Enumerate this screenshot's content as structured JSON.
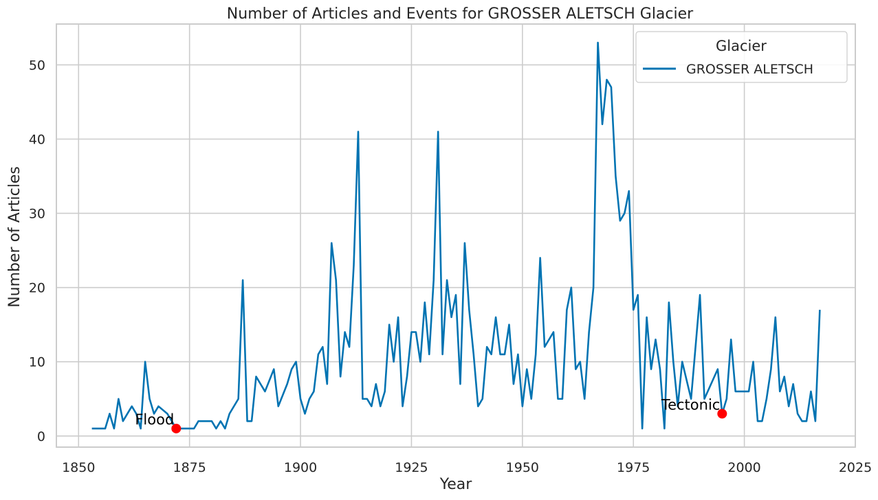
{
  "chart_data": {
    "type": "line",
    "title": "Number of Articles and Events for GROSSER ALETSCH Glacier",
    "xlabel": "Year",
    "ylabel": "Number of Articles",
    "xlim": [
      1845,
      2025
    ],
    "ylim": [
      -1.5,
      55.5
    ],
    "xticks": [
      1850,
      1875,
      1900,
      1925,
      1950,
      1975,
      2000,
      2025
    ],
    "yticks": [
      0,
      10,
      20,
      30,
      40,
      50
    ],
    "grid": true,
    "legend": {
      "title": "Glacier",
      "placement": "top-right"
    },
    "colors": {
      "line": "#0173b2",
      "event": "#ff0000",
      "grid": "#cccccc",
      "frame": "#cccccc"
    },
    "series": [
      {
        "name": "GROSSER ALETSCH",
        "x": [
          1853,
          1854,
          1855,
          1856,
          1857,
          1858,
          1859,
          1860,
          1862,
          1863,
          1864,
          1865,
          1866,
          1867,
          1868,
          1870,
          1871,
          1872,
          1873,
          1874,
          1875,
          1876,
          1877,
          1878,
          1879,
          1880,
          1881,
          1882,
          1883,
          1884,
          1886,
          1887,
          1888,
          1889,
          1890,
          1892,
          1894,
          1895,
          1897,
          1898,
          1899,
          1900,
          1901,
          1902,
          1903,
          1904,
          1905,
          1906,
          1907,
          1908,
          1909,
          1910,
          1911,
          1912,
          1913,
          1914,
          1915,
          1916,
          1917,
          1918,
          1919,
          1920,
          1921,
          1922,
          1923,
          1924,
          1925,
          1926,
          1927,
          1928,
          1929,
          1930,
          1931,
          1932,
          1933,
          1934,
          1935,
          1936,
          1937,
          1938,
          1939,
          1940,
          1941,
          1942,
          1943,
          1944,
          1945,
          1946,
          1947,
          1948,
          1949,
          1950,
          1951,
          1952,
          1953,
          1954,
          1955,
          1957,
          1958,
          1959,
          1960,
          1961,
          1962,
          1963,
          1964,
          1965,
          1966,
          1967,
          1968,
          1969,
          1970,
          1971,
          1972,
          1973,
          1974,
          1975,
          1976,
          1977,
          1978,
          1979,
          1980,
          1981,
          1982,
          1983,
          1984,
          1985,
          1986,
          1988,
          1990,
          1991,
          1994,
          1995,
          1996,
          1997,
          1998,
          1999,
          2000,
          2001,
          2002,
          2003,
          2004,
          2005,
          2006,
          2007,
          2008,
          2009,
          2010,
          2011,
          2012,
          2013,
          2014,
          2015,
          2016,
          2017
        ],
        "values": [
          1,
          1,
          1,
          1,
          3,
          1,
          5,
          2,
          4,
          3,
          1,
          10,
          5,
          3,
          4,
          3,
          2,
          1,
          1,
          1,
          1,
          1,
          2,
          2,
          2,
          2,
          1,
          2,
          1,
          3,
          5,
          21,
          2,
          2,
          8,
          6,
          9,
          4,
          7,
          9,
          10,
          5,
          3,
          5,
          6,
          11,
          12,
          7,
          26,
          21,
          8,
          14,
          12,
          23,
          41,
          5,
          5,
          4,
          7,
          4,
          6,
          15,
          10,
          16,
          4,
          8,
          14,
          14,
          10,
          18,
          11,
          21,
          41,
          11,
          21,
          16,
          19,
          7,
          26,
          17,
          11,
          4,
          5,
          12,
          11,
          16,
          11,
          11,
          15,
          7,
          11,
          4,
          9,
          5,
          11,
          24,
          12,
          14,
          5,
          5,
          17,
          20,
          9,
          10,
          5,
          14,
          20,
          53,
          42,
          48,
          47,
          35,
          29,
          30,
          33,
          17,
          19,
          1,
          16,
          9,
          13,
          9,
          1,
          18,
          10,
          4,
          10,
          5,
          19,
          5,
          9,
          3,
          5,
          13,
          6,
          6,
          6,
          6,
          10,
          2,
          2,
          5,
          9,
          16,
          6,
          8,
          4,
          7,
          3,
          2,
          2,
          6,
          2,
          17
        ]
      }
    ],
    "events": [
      {
        "label": "Flood",
        "x": 1872,
        "y": 1
      },
      {
        "label": "Tectonic",
        "x": 1995,
        "y": 3
      }
    ]
  }
}
